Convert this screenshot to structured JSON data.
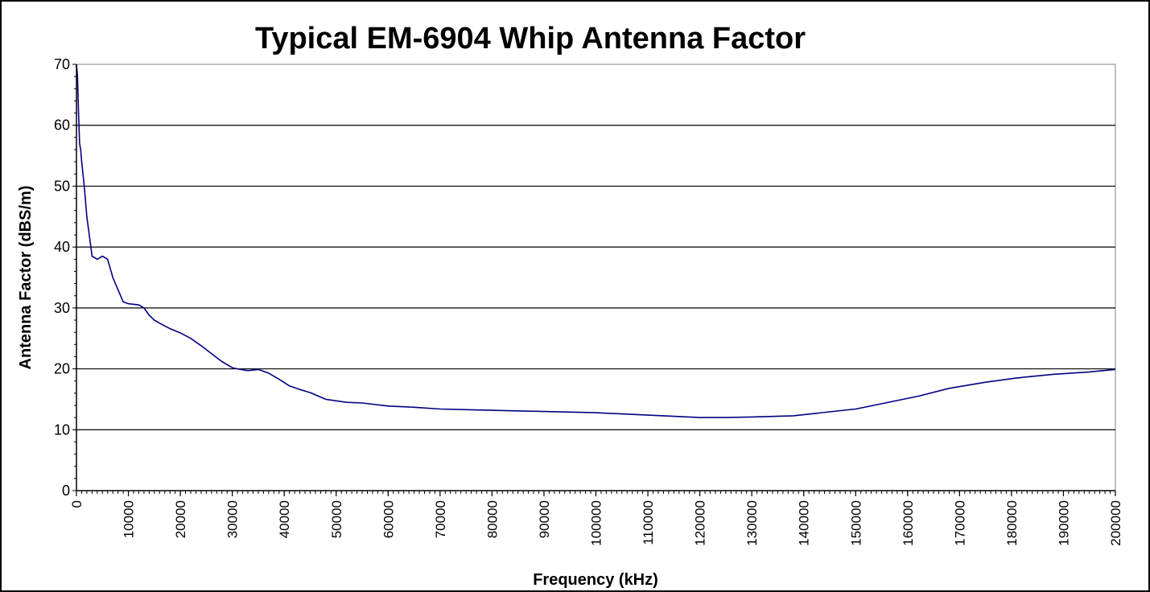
{
  "chart_data": {
    "type": "line",
    "title": "Typical EM-6904 Whip Antenna Factor",
    "xlabel": "Frequency (kHz)",
    "ylabel": "Antenna Factor (dBS/m)",
    "xlim": [
      0,
      200000
    ],
    "ylim": [
      0,
      70
    ],
    "xticks": [
      0,
      10000,
      20000,
      30000,
      40000,
      50000,
      60000,
      70000,
      80000,
      90000,
      100000,
      110000,
      120000,
      130000,
      140000,
      150000,
      160000,
      170000,
      180000,
      190000,
      200000
    ],
    "xtick_labels": [
      "0",
      "10000",
      "20000",
      "30000",
      "40000",
      "50000",
      "60000",
      "70000",
      "80000",
      "90000",
      "100000",
      "110000",
      "120000",
      "130000",
      "140000",
      "150000",
      "160000",
      "170000",
      "180000",
      "190000",
      "200000"
    ],
    "yticks": [
      0,
      10,
      20,
      30,
      40,
      50,
      60,
      70
    ],
    "ytick_labels": [
      "0",
      "10",
      "20",
      "30",
      "40",
      "50",
      "60",
      "70"
    ],
    "grid": "horizontal",
    "legend": "none",
    "colors": {
      "series": "#000080",
      "grid": "#000000",
      "frame": "#808080",
      "border": "#000000"
    },
    "series": [
      {
        "x": [
          0,
          200,
          400,
          600,
          800,
          1000,
          1500,
          2000,
          3000,
          4000,
          5000,
          6000,
          7000,
          8000,
          9000,
          10000,
          11000,
          12000,
          13000,
          14000,
          15000,
          16000,
          18000,
          20000,
          22000,
          24000,
          26000,
          28000,
          30000,
          31000,
          33000,
          35000,
          37000,
          39000,
          41000,
          43000,
          45000,
          48000,
          52000,
          55000,
          60000,
          65000,
          70000,
          75000,
          80000,
          90000,
          100000,
          110000,
          120000,
          125000,
          130000,
          138000,
          150000,
          162000,
          168000,
          175000,
          181000,
          188000,
          195000,
          200000
        ],
        "y": [
          70,
          68,
          62,
          57,
          56,
          54,
          50,
          45,
          38.5,
          38,
          38.5,
          38,
          35,
          33,
          31,
          30.7,
          30.6,
          30.5,
          30,
          28.8,
          28,
          27.5,
          26.6,
          25.9,
          25,
          23.8,
          22.5,
          21.2,
          20.2,
          20,
          19.7,
          19.9,
          19.3,
          18.3,
          17.2,
          16.6,
          16.1,
          15,
          14.5,
          14.4,
          13.9,
          13.7,
          13.4,
          13.3,
          13.2,
          13.0,
          12.8,
          12.4,
          12.0,
          12.0,
          12.1,
          12.3,
          13.4,
          15.5,
          16.8,
          17.8,
          18.5,
          19.1,
          19.5,
          19.9
        ]
      }
    ]
  }
}
